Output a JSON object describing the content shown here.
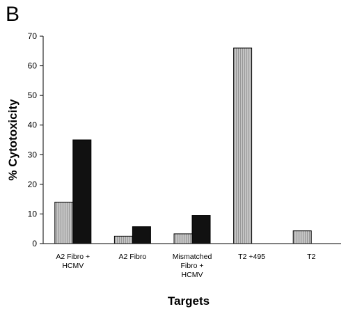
{
  "panel_label": "B",
  "chart_data": {
    "type": "bar",
    "categories": [
      [
        "A2 Fibro +",
        "HCMV"
      ],
      [
        "A2 Fibro"
      ],
      [
        "Mismatched",
        "Fibro +",
        "HCMV"
      ],
      [
        "T2 +495"
      ],
      [
        "T2"
      ]
    ],
    "series": [
      {
        "color": "#bdbdbd",
        "values": [
          14,
          2.5,
          3.3,
          66,
          4.3
        ]
      },
      {
        "color": "#111111",
        "values": [
          35,
          5.7,
          9.5,
          null,
          null
        ]
      }
    ],
    "xlabel": "Targets",
    "ylabel": "% Cytotoxicity",
    "ylim": [
      0,
      70
    ],
    "yticks": [
      0,
      10,
      20,
      30,
      40,
      50,
      60,
      70
    ],
    "grid": false,
    "legend": false
  }
}
